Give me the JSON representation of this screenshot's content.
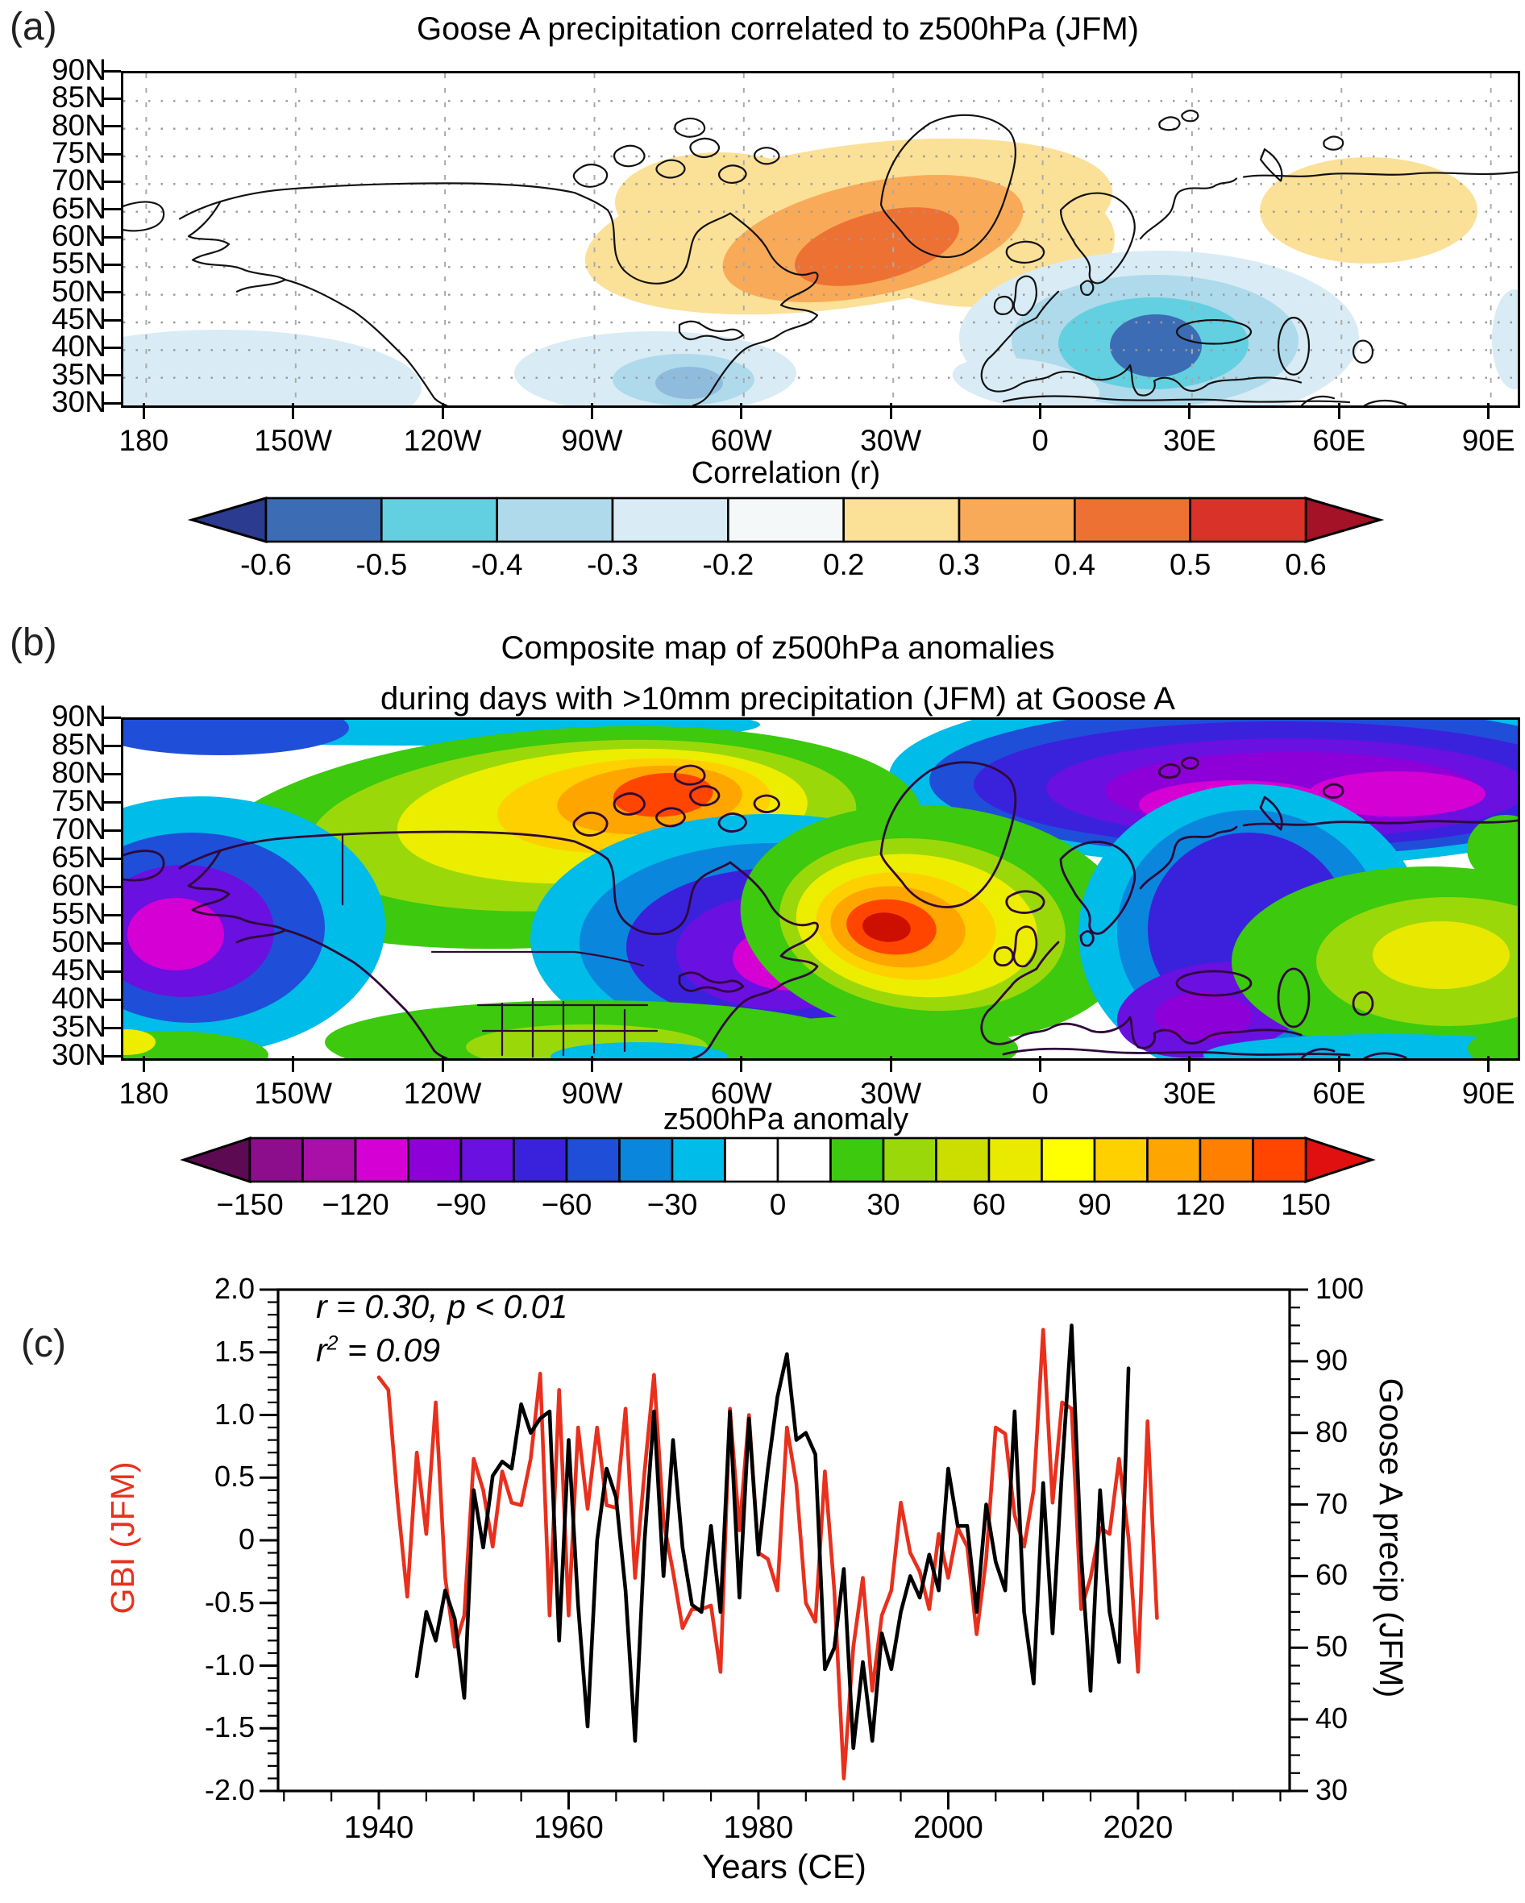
{
  "figure": {
    "panel_a": {
      "label": "(a)",
      "title": "Goose A precipitation  correlated to z500hPa (JFM)",
      "lat_labels": [
        "90N",
        "85N",
        "80N",
        "75N",
        "70N",
        "65N",
        "60N",
        "55N",
        "50N",
        "45N",
        "40N",
        "35N",
        "30N"
      ],
      "lon_labels": [
        "180",
        "150W",
        "120W",
        "90W",
        "60W",
        "30W",
        "0",
        "30E",
        "60E",
        "90E"
      ],
      "colorbar": {
        "title": "Correlation (r)",
        "cells": [
          "#3c6cb4",
          "#62d0e0",
          "#aedaeb",
          "#d9ecf5",
          "#f4f8f8",
          "#fbe098",
          "#f9aa58",
          "#ee7134",
          "#d93229"
        ],
        "arrow_left": "#2b3b8f",
        "arrow_right": "#a31226",
        "tick_labels": [
          "-0.6",
          "-0.5",
          "-0.4",
          "-0.3",
          "-0.2",
          "0.2",
          "0.3",
          "0.4",
          "0.5",
          "0.6"
        ]
      }
    },
    "panel_b": {
      "label": "(b)",
      "title_line1": "Composite map of z500hPa anomalies",
      "title_line2": "during days with >10mm precipitation (JFM) at Goose A",
      "lat_labels": [
        "90N",
        "85N",
        "80N",
        "75N",
        "70N",
        "65N",
        "60N",
        "55N",
        "50N",
        "45N",
        "40N",
        "35N",
        "30N"
      ],
      "lon_labels": [
        "180",
        "150W",
        "120W",
        "90W",
        "60W",
        "30W",
        "0",
        "30E",
        "60E",
        "90E"
      ],
      "colorbar": {
        "title": "z500hPa anomaly",
        "cells": [
          "#8c0e8c",
          "#a810a8",
          "#d400d4",
          "#8e00d8",
          "#6a10e0",
          "#3a22dd",
          "#1f4fd8",
          "#0a86dd",
          "#00bce8",
          "#ffffff",
          "#ffffff",
          "#3cc90e",
          "#9bd80a",
          "#ccdd00",
          "#eaea00",
          "#ffff00",
          "#ffd000",
          "#ffa500",
          "#ff7f00",
          "#ff4500"
        ],
        "arrow_left": "#5c0a52",
        "arrow_right": "#e01010",
        "tick_labels": [
          "−150",
          "−120",
          "−90",
          "−60",
          "−30",
          "0",
          "30",
          "60",
          "90",
          "120",
          "150"
        ]
      }
    },
    "panel_c": {
      "label": "(c)",
      "annotation_line1": "r = 0.30, p < 0.01",
      "annotation_line2": {
        "base": "r",
        "sup": "2",
        "rest": " = 0.09"
      },
      "xlabel": "Years (CE)",
      "ylabel_left": "GBI (JFM)",
      "ylabel_right": "Goose A precip (JFM)",
      "x_tick_labels": [
        "1940",
        "1960",
        "1980",
        "2000",
        "2020"
      ],
      "left_tick_labels": [
        "2.0",
        "1.5",
        "1.0",
        "0.5",
        "0",
        "-0.5",
        "-1.0",
        "-1.5",
        "-2.0"
      ],
      "right_tick_labels": [
        "100",
        "90",
        "80",
        "70",
        "60",
        "50",
        "40",
        "30"
      ],
      "colors": {
        "gbi": "#e8301d",
        "precip": "#000000"
      }
    }
  },
  "chart_data": [
    {
      "type": "heatmap",
      "subtype": "filled-contour correlation map",
      "title": "Goose A precipitation  correlated to z500hPa (JFM)",
      "colorbar_label": "Correlation (r)",
      "colorbar_levels": [
        -0.6,
        -0.5,
        -0.4,
        -0.3,
        -0.2,
        0.2,
        0.3,
        0.4,
        0.5,
        0.6
      ],
      "lat_ticks": [
        "90N",
        "85N",
        "80N",
        "75N",
        "70N",
        "65N",
        "60N",
        "55N",
        "50N",
        "45N",
        "40N",
        "35N",
        "30N"
      ],
      "lon_ticks": [
        "180",
        "150W",
        "120W",
        "90W",
        "60W",
        "30W",
        "0",
        "30E",
        "60E",
        "90E"
      ],
      "features": [
        "Positive correlation center (up to ~0.5-0.6) over the subpolar North Atlantic south of Greenland/Iceland",
        "Weak positive band (~0.2-0.3) over the Canadian Arctic archipelago and over western Siberia",
        "Negative correlation center (down to ~-0.6) over southeastern Europe / Balkans with rings to ~-0.2",
        "Weak negative (~-0.2 to -0.4) patch off the US east coast and in the NE Pacific lower-left corner"
      ]
    },
    {
      "type": "heatmap",
      "subtype": "filled-contour composite anomaly map",
      "title": "Composite map of z500hPa anomalies during days with >10mm precipitation (JFM) at Goose A",
      "colorbar_label": "z500hPa anomaly",
      "colorbar_levels": [
        -150,
        -120,
        -90,
        -60,
        -30,
        0,
        30,
        60,
        90,
        120,
        150
      ],
      "level_step": 15,
      "lat_ticks": [
        "90N",
        "85N",
        "80N",
        "75N",
        "70N",
        "65N",
        "60N",
        "55N",
        "50N",
        "45N",
        "40N",
        "35N",
        "30N"
      ],
      "lon_ticks": [
        "180",
        "150W",
        "120W",
        "90W",
        "60W",
        "30W",
        "0",
        "30E",
        "60E",
        "90E"
      ],
      "features": [
        "Strong positive anomaly center (>+150) over the mid-latitude North Atlantic near 30W, 55N",
        "Positive anomaly ridge (+90 to +150) over Alaska and the western Canadian Arctic",
        "Negative anomaly center (<-120, magenta core) over central Canada / Hudson Bay",
        "Negative anomaly center (<-120) over the NE Pacific near the left edge",
        "Broad negative anomalies (purple/magenta) across the Arctic from Greenland to Eurasia and over Scandinavia/Iberia",
        "Positive anomalies (+30 to +90) over southern Russia / Central Asia and the southern United States"
      ]
    },
    {
      "type": "line",
      "xlabel": "Years (CE)",
      "x_range": [
        1929,
        2036
      ],
      "x_major_ticks": [
        1940,
        1960,
        1980,
        2000,
        2020
      ],
      "annotations": [
        "r = 0.30, p < 0.01",
        "r^2 = 0.09"
      ],
      "series": [
        {
          "name": "GBI (JFM)",
          "color": "#e8301d",
          "axis": "left",
          "ylim": [
            -2.0,
            2.0
          ],
          "start_year": 1940,
          "values": [
            1.3,
            1.2,
            0.3,
            -0.45,
            0.7,
            0.05,
            1.1,
            -0.3,
            -0.85,
            -0.6,
            0.65,
            0.4,
            -0.05,
            0.55,
            0.3,
            0.28,
            0.65,
            1.33,
            -0.6,
            1.2,
            -0.6,
            0.9,
            0.25,
            0.9,
            0.28,
            0.26,
            1.05,
            -0.3,
            0.55,
            1.32,
            0.15,
            -0.25,
            -0.7,
            -0.55,
            -0.55,
            -0.52,
            -1.05,
            1.05,
            0.08,
            1.0,
            -0.1,
            -0.15,
            -0.4,
            0.9,
            0.45,
            -0.5,
            -0.65,
            0.55,
            -0.4,
            -1.9,
            -0.85,
            -0.3,
            -1.2,
            -0.6,
            -0.4,
            0.3,
            -0.1,
            -0.25,
            -0.55,
            0.05,
            -0.3,
            0.1,
            -0.05,
            -0.75,
            -0.15,
            0.9,
            0.85,
            0.2,
            -0.05,
            0.4,
            1.68,
            0.3,
            1.1,
            1.05,
            -0.55,
            -0.3,
            0.1,
            0.05,
            0.65,
            0.02,
            -1.05,
            0.95,
            -0.62
          ]
        },
        {
          "name": "Goose A precip (JFM)",
          "color": "#000000",
          "axis": "right",
          "ylim": [
            30,
            100
          ],
          "start_year": 1944,
          "values": [
            46,
            55,
            51,
            58,
            54,
            43,
            72,
            64,
            74,
            76,
            75,
            84,
            80,
            82,
            83,
            51,
            79,
            56,
            39,
            65,
            75,
            71,
            58,
            37,
            65,
            83,
            60,
            79,
            64,
            56,
            55,
            67,
            55,
            83,
            57,
            82,
            63,
            75,
            85,
            91,
            79,
            80,
            77,
            47,
            50,
            61,
            36,
            48,
            37,
            52,
            47,
            55,
            60,
            57,
            63,
            58,
            75,
            67,
            67,
            55,
            70,
            62,
            58,
            83,
            55,
            45,
            73,
            52,
            75,
            95,
            63,
            44,
            72,
            55,
            48,
            89
          ]
        }
      ]
    }
  ]
}
